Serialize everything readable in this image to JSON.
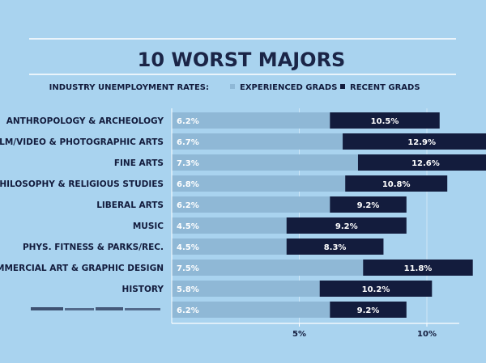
{
  "chart_data": {
    "type": "bar",
    "title": "10 WORST MAJORS",
    "legend_title": "INDUSTRY UNEMPLOYMENT RATES:",
    "legend_placement": "top",
    "categories": [
      "ANTHROPOLOGY & ARCHEOLOGY",
      "FILM/VIDEO & PHOTOGRAPHIC ARTS",
      "FINE ARTS",
      "PHILOSOPHY & RELIGIOUS STUDIES",
      "LIBERAL ARTS",
      "MUSIC",
      "PHYS. FITNESS & PARKS/REC.",
      "COMMERCIAL ART & GRAPHIC DESIGN",
      "HISTORY",
      ""
    ],
    "series": [
      {
        "name": "EXPERIENCED GRADS",
        "color": "#8fb8d6",
        "values": [
          6.2,
          6.7,
          7.3,
          6.8,
          6.2,
          4.5,
          4.5,
          7.5,
          5.8,
          6.2
        ],
        "labels": [
          "6.2%",
          "6.7%",
          "7.3%",
          "6.8%",
          "6.2%",
          "4.5%",
          "4.5%",
          "7.5%",
          "5.8%",
          "6.2%"
        ]
      },
      {
        "name": "RECENT GRADS",
        "color": "#131c3d",
        "values": [
          10.5,
          12.9,
          12.6,
          10.8,
          9.2,
          9.2,
          8.3,
          11.8,
          10.2,
          9.2
        ],
        "labels": [
          "10.5%",
          "12.9%",
          "12.6%",
          "10.8%",
          "9.2%",
          "9.2%",
          "8.3%",
          "11.8%",
          "10.2%",
          "9.2%"
        ]
      }
    ],
    "x_ticks": [
      5,
      10
    ],
    "x_tick_labels": [
      "5%",
      "10%"
    ],
    "xlim": [
      0,
      12.5
    ],
    "grid": true,
    "colors": {
      "background": "#a9d3ef",
      "title": "#1b2547",
      "text": "#131c3d",
      "grid": "#cfe6f6"
    }
  }
}
